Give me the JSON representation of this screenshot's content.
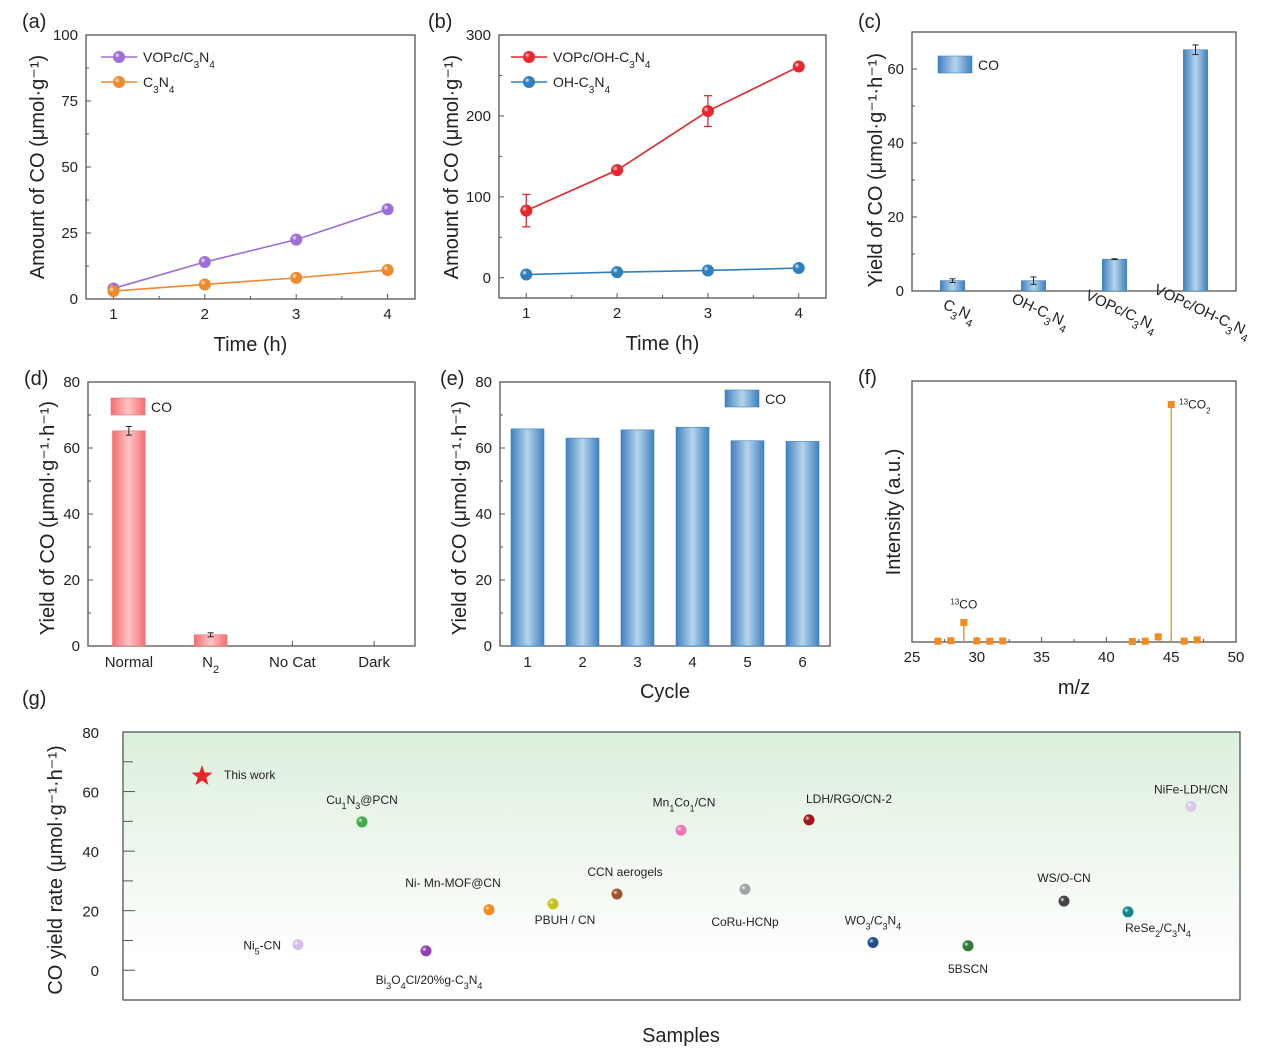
{
  "figure": {
    "panel_labels": [
      "(a)",
      "(b)",
      "(c)",
      "(d)",
      "(e)",
      "(f)",
      "(g)"
    ]
  },
  "chart_data": [
    {
      "id": "a",
      "type": "line",
      "panel": "(a)",
      "xlabel": "Time (h)",
      "ylabel": "Amount of CO (μmol·g⁻¹)",
      "x": [
        1,
        2,
        3,
        4
      ],
      "xticks": [
        "1",
        "2",
        "3",
        "4"
      ],
      "xlim": [
        0.7,
        4.3
      ],
      "ylim": [
        0,
        100
      ],
      "yticks": [
        "0",
        "25",
        "50",
        "75",
        "100"
      ],
      "legend": "top-left",
      "series": [
        {
          "name": "VOPc/C3N4",
          "color": "#9b6fd6",
          "values": [
            4,
            14,
            22.5,
            34
          ]
        },
        {
          "name": "C3N4",
          "color": "#ef8a2c",
          "values": [
            3,
            5.5,
            8,
            11
          ]
        }
      ]
    },
    {
      "id": "b",
      "type": "line",
      "panel": "(b)",
      "xlabel": "Time (h)",
      "ylabel": "Amount of CO (μmol·g⁻¹)",
      "x": [
        1,
        2,
        3,
        4
      ],
      "xticks": [
        "1",
        "2",
        "3",
        "4"
      ],
      "xlim": [
        0.7,
        4.3
      ],
      "ylim": [
        -25,
        300
      ],
      "yticks": [
        "0",
        "100",
        "200",
        "300"
      ],
      "legend": "top-left",
      "series": [
        {
          "name": "VOPc/OH-C3N4",
          "color": "#e8262b",
          "values": [
            83,
            133,
            206,
            261
          ],
          "errors": [
            20,
            2,
            19,
            2
          ]
        },
        {
          "name": "OH-C3N4",
          "color": "#2f7fbf",
          "values": [
            4,
            7,
            9,
            12
          ]
        }
      ]
    },
    {
      "id": "c",
      "type": "bar",
      "panel": "(c)",
      "ylabel": "Yield of CO (μmol·g⁻¹·h⁻¹)",
      "categories": [
        "C3N4",
        "OH-C3N4",
        "VOPc/C3N4",
        "VOPc/OH-C3N4"
      ],
      "values": [
        2.8,
        2.8,
        8.6,
        65.2
      ],
      "errors": [
        0.5,
        1.0,
        0.1,
        1.3
      ],
      "ylim": [
        0,
        70
      ],
      "yticks": [
        "0",
        "20",
        "40",
        "60"
      ],
      "legend": "top-left",
      "series_name": "CO",
      "color": "#4a8bc4"
    },
    {
      "id": "d",
      "type": "bar",
      "panel": "(d)",
      "ylabel": "Yield of CO (μmol·g⁻¹·h⁻¹)",
      "categories": [
        "Normal",
        "N2",
        "No Cat",
        "Dark"
      ],
      "values": [
        65.2,
        3.4,
        0,
        0
      ],
      "errors": [
        1.3,
        0.6,
        0,
        0
      ],
      "ylim": [
        0,
        80
      ],
      "yticks": [
        "0",
        "20",
        "40",
        "60",
        "80"
      ],
      "legend": "top-left",
      "series_name": "CO",
      "color": "#f06b6e"
    },
    {
      "id": "e",
      "type": "bar",
      "panel": "(e)",
      "xlabel": "Cycle",
      "ylabel": "Yield of CO (μmol·g⁻¹·h⁻¹)",
      "categories": [
        "1",
        "2",
        "3",
        "4",
        "5",
        "6"
      ],
      "values": [
        65.8,
        63.0,
        65.5,
        66.3,
        62.2,
        62.0
      ],
      "ylim": [
        0,
        80
      ],
      "yticks": [
        "0",
        "20",
        "40",
        "60",
        "80"
      ],
      "legend": "top-right",
      "series_name": "CO",
      "color": "#4a8bc4"
    },
    {
      "id": "f",
      "type": "bar",
      "subtype": "stem",
      "panel": "(f)",
      "xlabel": "m/z",
      "ylabel": "Intensity (a.u.)",
      "xlim": [
        25,
        50
      ],
      "xticks": [
        "25",
        "30",
        "35",
        "40",
        "45",
        "50"
      ],
      "ylim": [
        0,
        100
      ],
      "x": [
        27,
        28,
        29,
        30,
        31,
        32,
        42,
        43,
        44,
        45,
        46,
        47
      ],
      "values": [
        0.3,
        0.5,
        7.5,
        0.4,
        0.3,
        0.4,
        0.2,
        0.3,
        2.0,
        91,
        0.3,
        0.8
      ],
      "annotations": [
        {
          "text": "13CO",
          "x": 29
        },
        {
          "text": "13CO2",
          "x": 45
        }
      ],
      "color": "#f28a1e"
    },
    {
      "id": "g",
      "type": "scatter",
      "panel": "(g)",
      "xlabel": "Samples",
      "ylabel": "CO yield rate (μmol·g⁻¹·h⁻¹)",
      "ylim": [
        -10,
        80
      ],
      "yticks": [
        "0",
        "20",
        "40",
        "60",
        "80"
      ],
      "background": "green-gradient",
      "points": [
        {
          "label": "This work",
          "x": 1,
          "y": 65.2,
          "color": "#e8262b",
          "marker": "star"
        },
        {
          "label": "Ni5-CN",
          "x": 2,
          "y": 8.6,
          "color": "#d4bfe6"
        },
        {
          "label": "Cu1N3@PCN",
          "x": 3,
          "y": 49.8,
          "color": "#3fae4a"
        },
        {
          "label": "Bi3O4Cl/20%g-C3N4",
          "x": 4,
          "y": 6.5,
          "color": "#9640b4"
        },
        {
          "label": "Ni- Mn-MOF@CN",
          "x": 5,
          "y": 20.3,
          "color": "#f28a1e"
        },
        {
          "label": "PBUH / CN",
          "x": 6,
          "y": 22.3,
          "color": "#c9c21d"
        },
        {
          "label": "CCN aerogels",
          "x": 7,
          "y": 25.6,
          "color": "#a5522a"
        },
        {
          "label": "Mn1Co1/CN",
          "x": 8,
          "y": 47.0,
          "color": "#ef77b7"
        },
        {
          "label": "CoRu-HCNp",
          "x": 9,
          "y": 27.2,
          "color": "#a3a3a3"
        },
        {
          "label": "LDH/RGO/CN-2",
          "x": 10,
          "y": 50.5,
          "color": "#a3161e"
        },
        {
          "label": "WO3/C3N4",
          "x": 11,
          "y": 9.3,
          "color": "#214f8c"
        },
        {
          "label": "5BSCN",
          "x": 12,
          "y": 8.2,
          "color": "#2e7d32"
        },
        {
          "label": "WS/O-CN",
          "x": 13,
          "y": 23.2,
          "color": "#444444"
        },
        {
          "label": "ReSe2/C3N4",
          "x": 14,
          "y": 19.6,
          "color": "#15878c"
        },
        {
          "label": "NiFe-LDH/CN",
          "x": 15,
          "y": 55.0,
          "color": "#d9c8ea"
        }
      ]
    }
  ]
}
